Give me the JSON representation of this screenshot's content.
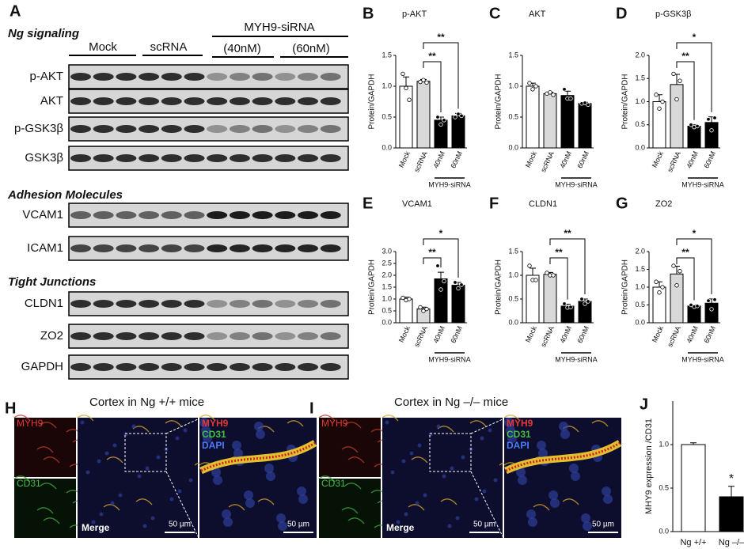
{
  "panel_A": {
    "letter": "A",
    "header": {
      "mock": "Mock",
      "scrna": "scRNA",
      "sirna": "MYH9-siRNA",
      "c40": "(40nM)",
      "c60": "(60nM)"
    },
    "sections": [
      {
        "title": "Ng signaling",
        "rows": [
          "p-AKT",
          "AKT",
          "p-GSK3β",
          "GSK3β"
        ]
      },
      {
        "title": "Adhesion Molecules",
        "rows": [
          "VCAM1",
          "ICAM1"
        ]
      },
      {
        "title": "Tight Junctions",
        "rows": [
          "CLDN1",
          "ZO2",
          "GAPDH"
        ]
      }
    ]
  },
  "chart_data": [
    {
      "type": "bar",
      "panel": "B",
      "title": "p-AKT",
      "y_label": "Protein/GAPDH",
      "categories": [
        "Mock",
        "scRNA",
        "40nM",
        "60nM"
      ],
      "group_label": "MYH9-siRNA",
      "values": [
        1.0,
        1.08,
        0.45,
        0.52
      ],
      "errors": [
        0.15,
        0.03,
        0.05,
        0.04
      ],
      "points": [
        [
          1.2,
          0.97,
          0.78
        ],
        [
          1.07,
          1.1,
          1.06
        ],
        [
          0.5,
          0.38,
          0.45
        ],
        [
          0.5,
          0.55,
          0.52
        ]
      ],
      "colors": [
        "#ffffff",
        "#d9d9d9",
        "#000000",
        "#000000"
      ],
      "ylim": [
        0,
        1.5
      ],
      "yticks": [
        {
          "value": 0,
          "label": "0.0"
        },
        0.5,
        {
          "value": 1,
          "label": "1.0"
        },
        1.5
      ],
      "significance": [
        {
          "from": "scRNA",
          "to": "40nM",
          "label": "**"
        },
        {
          "from": "scRNA",
          "to": "60nM",
          "label": "**"
        }
      ]
    },
    {
      "type": "bar",
      "panel": "C",
      "title": "AKT",
      "y_label": "Protein/GAPDH",
      "categories": [
        "Mock",
        "scRNA",
        "40nM",
        "60nM"
      ],
      "group_label": "MYH9-siRNA",
      "values": [
        1.0,
        0.88,
        0.85,
        0.72
      ],
      "errors": [
        0.05,
        0.02,
        0.07,
        0.02
      ],
      "points": [
        [
          1.05,
          0.95,
          1.0
        ],
        [
          0.88,
          0.9,
          0.86
        ],
        [
          0.95,
          0.8,
          0.8
        ],
        [
          0.72,
          0.73,
          0.7
        ]
      ],
      "colors": [
        "#ffffff",
        "#d9d9d9",
        "#000000",
        "#000000"
      ],
      "ylim": [
        0,
        1.5
      ],
      "yticks": [
        {
          "value": 0,
          "label": "0.0"
        },
        0.5,
        {
          "value": 1,
          "label": "1.0"
        },
        1.5
      ],
      "significance": []
    },
    {
      "type": "bar",
      "panel": "D",
      "title": "p-GSK3β",
      "y_label": "Protein/GAPDH",
      "categories": [
        "Mock",
        "scRNA",
        "40nM",
        "60nM"
      ],
      "group_label": "MYH9-siRNA",
      "values": [
        1.0,
        1.37,
        0.47,
        0.55
      ],
      "errors": [
        0.15,
        0.22,
        0.03,
        0.12
      ],
      "points": [
        [
          1.15,
          0.85,
          1.0
        ],
        [
          1.6,
          1.05,
          1.45
        ],
        [
          0.5,
          0.45,
          0.47
        ],
        [
          0.62,
          0.38,
          0.65
        ]
      ],
      "colors": [
        "#ffffff",
        "#d9d9d9",
        "#000000",
        "#000000"
      ],
      "ylim": [
        0,
        2
      ],
      "yticks": [
        {
          "value": 0,
          "label": "0.0"
        },
        0.5,
        {
          "value": 1,
          "label": "1.0"
        },
        1.5,
        {
          "value": 2,
          "label": "2.0"
        }
      ],
      "significance": [
        {
          "from": "scRNA",
          "to": "40nM",
          "label": "**"
        },
        {
          "from": "scRNA",
          "to": "60nM",
          "label": "*"
        }
      ]
    },
    {
      "type": "bar",
      "panel": "E",
      "title": "VCAM1",
      "y_label": "Protein/GAPDH",
      "categories": [
        "Mock",
        "scRNA",
        "40nM",
        "60nM"
      ],
      "group_label": "MYH9-siRNA",
      "values": [
        1.0,
        0.58,
        1.85,
        1.58
      ],
      "errors": [
        0.08,
        0.08,
        0.28,
        0.12
      ],
      "points": [
        [
          1.05,
          0.95,
          1.0
        ],
        [
          0.65,
          0.5,
          0.58
        ],
        [
          2.4,
          1.4,
          1.75
        ],
        [
          1.7,
          1.45,
          1.6
        ]
      ],
      "colors": [
        "#ffffff",
        "#d9d9d9",
        "#000000",
        "#000000"
      ],
      "ylim": [
        0,
        3
      ],
      "yticks": [
        {
          "value": 0,
          "label": "0.0"
        },
        0.5,
        {
          "value": 1,
          "label": "1.0"
        },
        1.5,
        {
          "value": 2,
          "label": "2.0"
        },
        2.5,
        {
          "value": 3,
          "label": "3.0"
        }
      ],
      "significance": [
        {
          "from": "scRNA",
          "to": "40nM",
          "label": "**"
        },
        {
          "from": "scRNA",
          "to": "60nM",
          "label": "*"
        }
      ]
    },
    {
      "type": "bar",
      "panel": "F",
      "title": "CLDN1",
      "y_label": "Protein/GAPDH",
      "categories": [
        "Mock",
        "scRNA",
        "40nM",
        "60nM"
      ],
      "group_label": "MYH9-siRNA",
      "values": [
        1.0,
        1.02,
        0.35,
        0.45
      ],
      "errors": [
        0.15,
        0.04,
        0.04,
        0.05
      ],
      "points": [
        [
          1.2,
          0.9,
          0.9
        ],
        [
          1.05,
          1.0,
          1.0
        ],
        [
          0.4,
          0.32,
          0.33
        ],
        [
          0.5,
          0.4,
          0.45
        ]
      ],
      "colors": [
        "#ffffff",
        "#d9d9d9",
        "#000000",
        "#000000"
      ],
      "ylim": [
        0,
        1.5
      ],
      "yticks": [
        {
          "value": 0,
          "label": "0.0"
        },
        0.5,
        {
          "value": 1,
          "label": "1.0"
        },
        1.5
      ],
      "significance": [
        {
          "from": "scRNA",
          "to": "40nM",
          "label": "**"
        },
        {
          "from": "scRNA",
          "to": "60nM",
          "label": "**"
        }
      ]
    },
    {
      "type": "bar",
      "panel": "G",
      "title": "ZO2",
      "y_label": "Protein/GAPDH",
      "categories": [
        "Mock",
        "scRNA",
        "40nM",
        "60nM"
      ],
      "group_label": "MYH9-siRNA",
      "values": [
        1.0,
        1.37,
        0.47,
        0.55
      ],
      "errors": [
        0.15,
        0.22,
        0.03,
        0.12
      ],
      "points": [
        [
          1.15,
          0.85,
          1.0
        ],
        [
          1.6,
          1.05,
          1.45
        ],
        [
          0.5,
          0.45,
          0.47
        ],
        [
          0.62,
          0.38,
          0.65
        ]
      ],
      "colors": [
        "#ffffff",
        "#d9d9d9",
        "#000000",
        "#000000"
      ],
      "ylim": [
        0,
        2
      ],
      "yticks": [
        {
          "value": 0,
          "label": "0.0"
        },
        0.5,
        {
          "value": 1,
          "label": "1.0"
        },
        1.5,
        {
          "value": 2,
          "label": "2.0"
        }
      ],
      "significance": [
        {
          "from": "scRNA",
          "to": "40nM",
          "label": "**"
        },
        {
          "from": "scRNA",
          "to": "60nM",
          "label": "*"
        }
      ]
    },
    {
      "type": "bar",
      "panel": "J",
      "y_label": "MHY9 expression /CD31",
      "categories": [
        "Ng +/+",
        "Ng –/–"
      ],
      "values": [
        1.0,
        0.4
      ],
      "errors": [
        0.02,
        0.12
      ],
      "colors": [
        "#ffffff",
        "#000000"
      ],
      "ylim": [
        0,
        1.5
      ],
      "yticks": [
        {
          "value": 0,
          "label": "0.0"
        },
        0.5,
        {
          "value": 1,
          "label": "1.0"
        }
      ],
      "significance": [
        {
          "to": "Ng –/–",
          "label": "*"
        }
      ]
    }
  ],
  "panel_H": {
    "letter": "H",
    "title": "Cortex in Ng +/+ mice",
    "channels": [
      "MYH9",
      "CD31"
    ],
    "merge": "Merge",
    "zoom_channels": [
      "MYH9",
      "CD31",
      "DAPI"
    ],
    "scale_bars": [
      "50 µm",
      "50 µm"
    ]
  },
  "panel_I": {
    "letter": "I",
    "title": "Cortex in Ng –/– mice",
    "channels": [
      "MYH9",
      "CD31"
    ],
    "merge": "Merge",
    "zoom_channels": [
      "MYH9",
      "CD31",
      "DAPI"
    ],
    "scale_bars": [
      "50 µm",
      "50 µm"
    ]
  }
}
